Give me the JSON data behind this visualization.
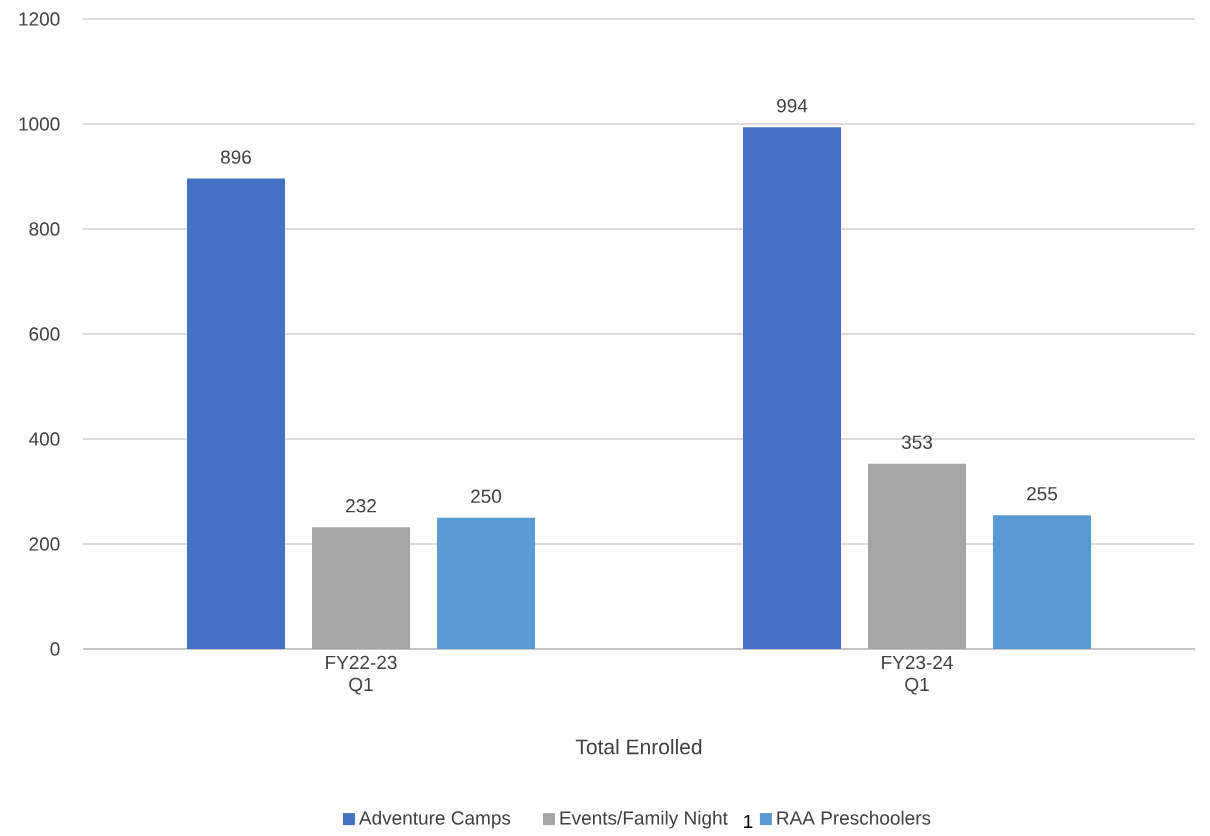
{
  "chart_data": {
    "type": "bar",
    "xlabel": "Total Enrolled",
    "categories": [
      "FY22-23 Q1",
      "FY23-24 Q1"
    ],
    "series": [
      {
        "name": "Adventure Camps",
        "color": "#4472c4",
        "values": [
          896,
          994
        ]
      },
      {
        "name": "Events/Family Night",
        "color": "#a5a5a5",
        "values": [
          232,
          353
        ]
      },
      {
        "name": "RAA Preschoolers",
        "color": "#5b9bd5",
        "values": [
          250,
          255
        ]
      }
    ],
    "ylim": [
      0,
      1200
    ],
    "yticks": [
      0,
      200,
      400,
      600,
      800,
      1000,
      1200
    ],
    "grid": "y",
    "legend": "bottom",
    "data_labels": true,
    "annotations": [
      "1"
    ]
  }
}
